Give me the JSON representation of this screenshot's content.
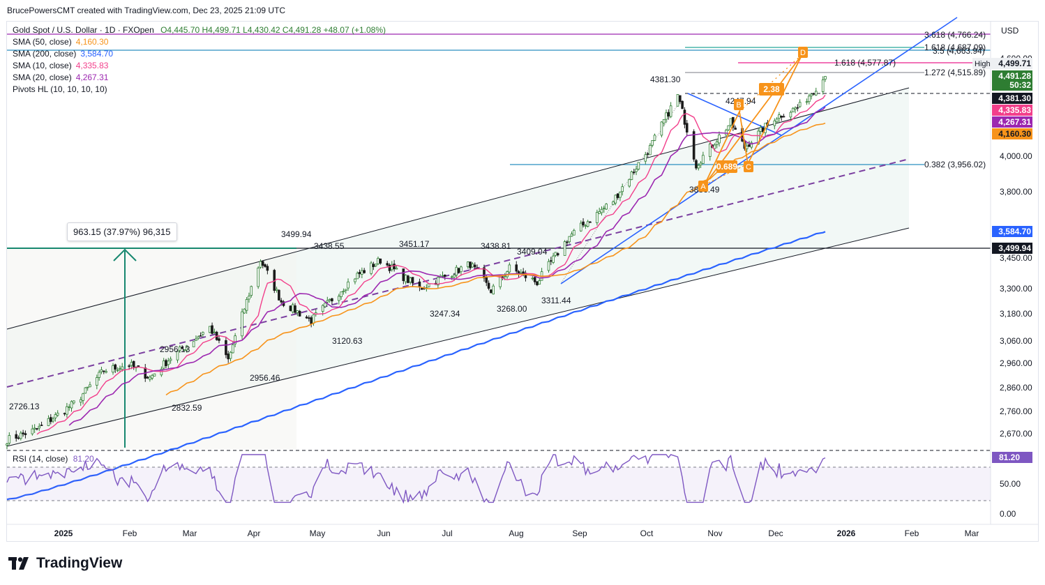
{
  "header": {
    "text": "BrucePowersCMT created with TradingView.com, Dec 23, 2025 21:09 UTC"
  },
  "legend": {
    "symbol": "Gold Spot / U.S. Dollar · 1D · FXOpen",
    "ohlc": "O4,445.70  H4,499.71  L4,430.42  C4,491.28  +48.07 (+1.08%)",
    "sma50_label": "SMA (50, close)",
    "sma50_value": "4,160.30",
    "sma200_label": "SMA (200, close)",
    "sma200_value": "3,584.70",
    "sma10_label": "SMA (10, close)",
    "sma10_value": "4,335.83",
    "sma20_label": "SMA (20, close)",
    "sma20_value": "4,267.31",
    "pivots_label": "Pivots HL (10, 10, 10, 10)"
  },
  "rsi_legend": {
    "label": "RSI (14, close)",
    "value": "81.20"
  },
  "currency": "USD",
  "measure_box": "963.15 (37.97%) 96,315",
  "logo_text": "TradingView",
  "colors": {
    "sma50": "#f7931a",
    "sma200": "#2962ff",
    "sma10": "#f23f8b",
    "sma20": "#9c27b0",
    "candle": "#2e7d32",
    "rsi": "#7e57c2",
    "measure": "#16876f",
    "fib_high": "#9c27b0",
    "fib_382": "#2b8fc0",
    "fib_1618": "#e91e8c",
    "abcd": "#f7931a",
    "trend": "#2962ff"
  },
  "chart_data": {
    "type": "candlestick",
    "symbol": "Gold Spot / U.S. Dollar",
    "timeframe": "1D",
    "x_months": [
      "2025",
      "Feb",
      "Mar",
      "Apr",
      "May",
      "Jun",
      "Jul",
      "Aug",
      "Sep",
      "Oct",
      "Nov",
      "Dec",
      "2026",
      "Feb",
      "Mar"
    ],
    "y_ticks": [
      "4,600.00",
      "4,000.00",
      "3,800.00",
      "3,450.00",
      "3,300.00",
      "3,180.00",
      "3,060.00",
      "2,960.00",
      "2,860.00",
      "2,760.00",
      "2,670.00"
    ],
    "rsi_ticks": [
      "50.00",
      "0.00"
    ],
    "scale": "log",
    "close_series_approx": [
      [
        "2025-01-02",
        2650
      ],
      [
        "2025-01-15",
        2690
      ],
      [
        "2025-02-01",
        2800
      ],
      [
        "2025-02-13",
        2930
      ],
      [
        "2025-02-24",
        2956
      ],
      [
        "2025-03-05",
        2900
      ],
      [
        "2025-03-14",
        2985
      ],
      [
        "2025-03-31",
        3120
      ],
      [
        "2025-04-08",
        2975
      ],
      [
        "2025-04-22",
        3440
      ],
      [
        "2025-05-01",
        3240
      ],
      [
        "2025-05-14",
        3150
      ],
      [
        "2025-06-01",
        3350
      ],
      [
        "2025-06-13",
        3440
      ],
      [
        "2025-06-30",
        3300
      ],
      [
        "2025-07-22",
        3420
      ],
      [
        "2025-07-31",
        3290
      ],
      [
        "2025-08-08",
        3400
      ],
      [
        "2025-08-20",
        3330
      ],
      [
        "2025-09-03",
        3560
      ],
      [
        "2025-09-22",
        3750
      ],
      [
        "2025-10-08",
        4050
      ],
      [
        "2025-10-20",
        4370
      ],
      [
        "2025-10-28",
        3950
      ],
      [
        "2025-11-12",
        4200
      ],
      [
        "2025-11-18",
        4050
      ],
      [
        "2025-12-01",
        4230
      ],
      [
        "2025-12-12",
        4300
      ],
      [
        "2025-12-23",
        4491
      ]
    ],
    "pivot_labels": [
      "2726.13",
      "2956.13",
      "2832.59",
      "2956.46",
      "3499.94",
      "3438.55",
      "3120.63",
      "3451.17",
      "3247.34",
      "3438.81",
      "3268.00",
      "3409.04",
      "3311.44",
      "4381.30",
      "4247.94",
      "3886.49"
    ],
    "fib_levels": [
      {
        "label": "3.618 (4,766.24)",
        "value": 4766.24
      },
      {
        "label": "1.618 (4,687.09)",
        "value": 4687.09
      },
      {
        "label": "3.5 (4,663.94)",
        "value": 4663.94
      },
      {
        "label": "1.618 (4,577.87)",
        "value": 4577.87
      },
      {
        "label": "1.272 (4,515.89)",
        "value": 4515.89
      },
      {
        "label": "0.382 (3,956.02)",
        "value": 3956.02
      }
    ],
    "abcd_points": [
      "A",
      "B",
      "C",
      "D"
    ],
    "abcd_ratios": [
      "2.38",
      "0.689"
    ],
    "price_tags": [
      {
        "text": "High",
        "value": "4,499.71"
      },
      {
        "text": "",
        "value": "4,491.28"
      },
      {
        "text": "",
        "value": "50:32"
      },
      {
        "text": "",
        "value": "4,381.30"
      },
      {
        "text": "",
        "value": "4,335.83"
      },
      {
        "text": "",
        "value": "4,267.31"
      },
      {
        "text": "",
        "value": "4,160.30"
      },
      {
        "text": "",
        "value": "3,584.70"
      },
      {
        "text": "",
        "value": "3,499.94"
      }
    ],
    "rsi": {
      "period": 14,
      "last": 81.2,
      "levels": [
        70,
        30
      ]
    },
    "measure": {
      "change": 963.15,
      "percent": 37.97,
      "ticks": 96315
    },
    "sma": {
      "sma10": 4335.83,
      "sma20": 4267.31,
      "sma50": 4160.3,
      "sma200": 3584.7
    }
  }
}
